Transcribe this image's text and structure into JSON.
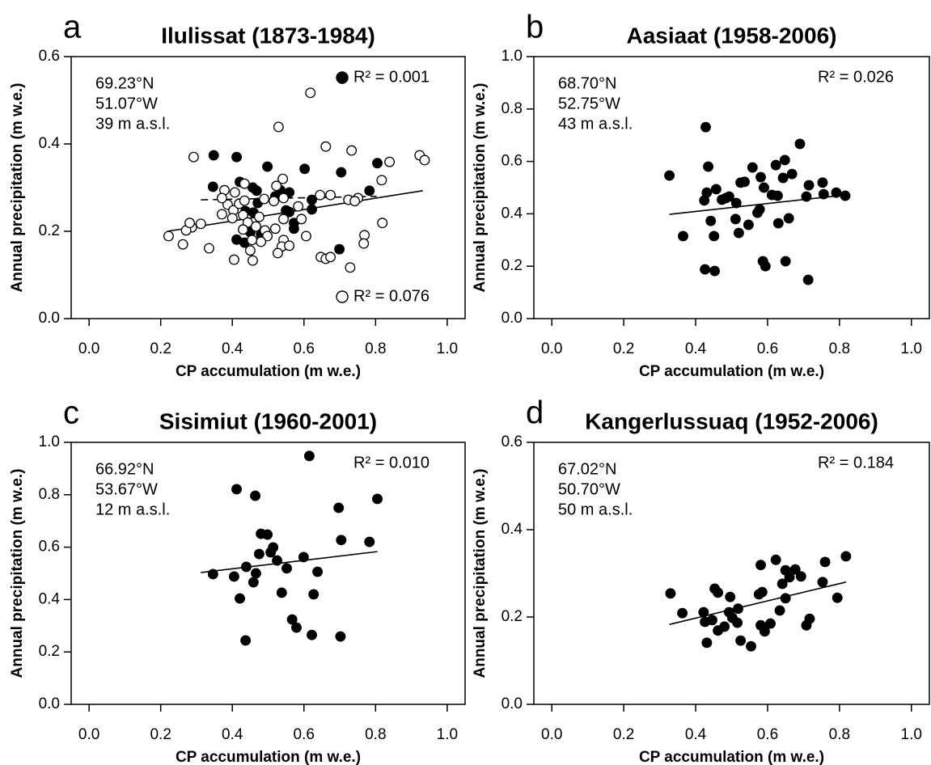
{
  "chart_data": [
    {
      "type": "scatter",
      "label": "a",
      "title": "Ilulissat (1873-1984)",
      "xlabel": "CP accumulation (m w.e.)",
      "ylabel": "Annual precipitation (m w.e.)",
      "xlim": [
        -0.05,
        1.05
      ],
      "ylim": [
        0,
        0.6
      ],
      "xticks": [
        {
          "value": 0,
          "label": "0.0"
        },
        0.2,
        0.4,
        0.6,
        0.8,
        {
          "value": 1,
          "label": "1.0"
        }
      ],
      "yticks": [
        {
          "value": 0,
          "label": "0.0"
        },
        0.2,
        0.4,
        0.6
      ],
      "annotations": [
        "69.23°N",
        "51.07°W",
        "39 m a.s.l."
      ],
      "legend_marker": true,
      "series": [
        {
          "name": "R² = 0.001",
          "color": "#000000",
          "filled": true,
          "x": [
            0.348,
            0.412,
            0.498,
            0.602,
            0.704,
            0.805,
            0.346,
            0.421,
            0.457,
            0.468,
            0.52,
            0.534,
            0.559,
            0.622,
            0.783,
            0.471,
            0.55,
            0.559,
            0.622,
            0.572,
            0.572,
            0.412,
            0.434,
            0.699,
            0.45,
            0.48,
            0.437,
            0.459
          ],
          "y": [
            0.374,
            0.37,
            0.348,
            0.343,
            0.335,
            0.356,
            0.302,
            0.313,
            0.3,
            0.293,
            0.28,
            0.294,
            0.289,
            0.272,
            0.293,
            0.265,
            0.248,
            0.244,
            0.25,
            0.219,
            0.206,
            0.181,
            0.174,
            0.159,
            0.198,
            0.193,
            0.246,
            0.243
          ],
          "fit": {
            "x": [
              0.312,
              0.803
            ],
            "y": [
              0.272,
              0.28
            ],
            "dash": true
          }
        },
        {
          "name": "R² = 0.076",
          "color": "#000000",
          "filled": false,
          "x": [
            0.292,
            0.618,
            0.529,
            0.661,
            0.733,
            0.923,
            0.937,
            0.839,
            0.817,
            0.724,
            0.751,
            0.742,
            0.645,
            0.674,
            0.541,
            0.523,
            0.434,
            0.407,
            0.378,
            0.387,
            0.371,
            0.403,
            0.419,
            0.43,
            0.443,
            0.475,
            0.489,
            0.516,
            0.543,
            0.584,
            0.593,
            0.543,
            0.52,
            0.491,
            0.498,
            0.48,
            0.455,
            0.543,
            0.606,
            0.538,
            0.559,
            0.527,
            0.45,
            0.457,
            0.405,
            0.335,
            0.262,
            0.222,
            0.287,
            0.271,
            0.312,
            0.281,
            0.819,
            0.769,
            0.767,
            0.647,
            0.661,
            0.674,
            0.729,
            0.4,
            0.466,
            0.371,
            0.434,
            0.43
          ],
          "y": [
            0.37,
            0.517,
            0.439,
            0.394,
            0.385,
            0.374,
            0.363,
            0.359,
            0.317,
            0.272,
            0.276,
            0.269,
            0.283,
            0.283,
            0.32,
            0.304,
            0.309,
            0.289,
            0.294,
            0.261,
            0.276,
            0.248,
            0.263,
            0.237,
            0.22,
            0.233,
            0.274,
            0.269,
            0.276,
            0.257,
            0.228,
            0.228,
            0.206,
            0.202,
            0.189,
            0.176,
            0.18,
            0.18,
            0.189,
            0.165,
            0.167,
            0.15,
            0.156,
            0.133,
            0.135,
            0.161,
            0.17,
            0.189,
            0.209,
            0.202,
            0.217,
            0.219,
            0.219,
            0.191,
            0.172,
            0.141,
            0.137,
            0.141,
            0.117,
            0.23,
            0.211,
            0.239,
            0.27,
            0.204
          ],
          "fit": {
            "x": [
              0.219,
              0.932
            ],
            "y": [
              0.2,
              0.293
            ],
            "dash": false
          }
        }
      ]
    },
    {
      "type": "scatter",
      "label": "b",
      "title": "Aasiaat (1958-2006)",
      "xlabel": "CP accumulation (m w.e.)",
      "ylabel": "Annual precipitation (m w.e.)",
      "xlim": [
        -0.05,
        1.05
      ],
      "ylim": [
        0,
        1
      ],
      "xticks": [
        {
          "value": 0,
          "label": "0.0"
        },
        0.2,
        0.4,
        0.6,
        0.8,
        {
          "value": 1,
          "label": "1.0"
        }
      ],
      "yticks": [
        {
          "value": 0,
          "label": "0.0"
        },
        0.2,
        0.4,
        0.6,
        0.8,
        {
          "value": 1,
          "label": "1.0"
        }
      ],
      "annotations": [
        "68.70°N",
        "52.75°W",
        "43 m a.s.l."
      ],
      "legend_marker": false,
      "series": [
        {
          "name": "R² = 0.026",
          "color": "#000000",
          "filled": true,
          "x": [
            0.327,
            0.428,
            0.435,
            0.365,
            0.424,
            0.431,
            0.457,
            0.442,
            0.451,
            0.426,
            0.453,
            0.473,
            0.484,
            0.493,
            0.511,
            0.513,
            0.52,
            0.525,
            0.536,
            0.547,
            0.558,
            0.572,
            0.578,
            0.581,
            0.587,
            0.59,
            0.594,
            0.612,
            0.623,
            0.63,
            0.628,
            0.643,
            0.648,
            0.65,
            0.659,
            0.668,
            0.69,
            0.708,
            0.715,
            0.713,
            0.753,
            0.756,
            0.791,
            0.816
          ],
          "y": [
            0.546,
            0.731,
            0.58,
            0.315,
            0.451,
            0.481,
            0.494,
            0.373,
            0.315,
            0.188,
            0.182,
            0.454,
            0.46,
            0.466,
            0.38,
            0.441,
            0.327,
            0.519,
            0.522,
            0.358,
            0.577,
            0.404,
            0.417,
            0.54,
            0.219,
            0.5,
            0.2,
            0.472,
            0.586,
            0.364,
            0.469,
            0.537,
            0.605,
            0.219,
            0.383,
            0.552,
            0.667,
            0.466,
            0.509,
            0.148,
            0.519,
            0.475,
            0.481,
            0.469
          ],
          "fit": {
            "x": [
              0.327,
              0.816
            ],
            "y": [
              0.398,
              0.472
            ],
            "dash": false
          }
        }
      ]
    },
    {
      "type": "scatter",
      "label": "c",
      "title": "Sisimiut (1960-2001)",
      "xlabel": "CP accumulation (m w.e.)",
      "ylabel": "Annual precipitation (m w.e.)",
      "xlim": [
        -0.05,
        1.05
      ],
      "ylim": [
        0,
        1
      ],
      "xticks": [
        {
          "value": 0,
          "label": "0.0"
        },
        0.2,
        0.4,
        0.6,
        0.8,
        {
          "value": 1,
          "label": "1.0"
        }
      ],
      "yticks": [
        {
          "value": 0,
          "label": "0.0"
        },
        0.2,
        0.4,
        0.6,
        0.8,
        {
          "value": 1,
          "label": "1.0"
        }
      ],
      "annotations": [
        "66.92°N",
        "53.67°W",
        "12 m a.s.l."
      ],
      "legend_marker": false,
      "series": [
        {
          "name": "R² = 0.010",
          "color": "#000000",
          "filled": true,
          "x": [
            0.346,
            0.412,
            0.405,
            0.421,
            0.439,
            0.437,
            0.464,
            0.459,
            0.466,
            0.475,
            0.48,
            0.498,
            0.507,
            0.514,
            0.525,
            0.538,
            0.552,
            0.567,
            0.579,
            0.599,
            0.615,
            0.622,
            0.627,
            0.638,
            0.697,
            0.704,
            0.702,
            0.783,
            0.805
          ],
          "y": [
            0.497,
            0.821,
            0.488,
            0.404,
            0.525,
            0.244,
            0.796,
            0.466,
            0.5,
            0.574,
            0.651,
            0.648,
            0.58,
            0.599,
            0.549,
            0.426,
            0.519,
            0.324,
            0.293,
            0.562,
            0.948,
            0.265,
            0.42,
            0.506,
            0.75,
            0.627,
            0.259,
            0.62,
            0.784
          ],
          "fit": {
            "x": [
              0.312,
              0.805
            ],
            "y": [
              0.503,
              0.583
            ],
            "dash": false
          }
        }
      ]
    },
    {
      "type": "scatter",
      "label": "d",
      "title": "Kangerlussuaq (1952-2006)",
      "xlabel": "CP accumulation (m w.e.)",
      "ylabel": "Annual precipitation (m w.e.)",
      "xlim": [
        -0.05,
        1.05
      ],
      "ylim": [
        0,
        0.6
      ],
      "xticks": [
        {
          "value": 0,
          "label": "0.0"
        },
        0.2,
        0.4,
        0.6,
        0.8,
        {
          "value": 1,
          "label": "1.0"
        }
      ],
      "yticks": [
        {
          "value": 0,
          "label": "0.0"
        },
        0.2,
        0.4,
        0.6
      ],
      "annotations": [
        "67.02°N",
        "50.70°W",
        "50 m a.s.l."
      ],
      "legend_marker": false,
      "series": [
        {
          "name": "R² = 0.184",
          "color": "#000000",
          "filled": true,
          "x": [
            0.33,
            0.363,
            0.422,
            0.426,
            0.431,
            0.446,
            0.453,
            0.462,
            0.462,
            0.48,
            0.496,
            0.493,
            0.502,
            0.518,
            0.516,
            0.525,
            0.554,
            0.576,
            0.585,
            0.581,
            0.581,
            0.592,
            0.608,
            0.623,
            0.634,
            0.641,
            0.65,
            0.65,
            0.661,
            0.677,
            0.693,
            0.708,
            0.717,
            0.753,
            0.76,
            0.794,
            0.818
          ],
          "y": [
            0.254,
            0.209,
            0.211,
            0.189,
            0.141,
            0.193,
            0.265,
            0.256,
            0.169,
            0.178,
            0.246,
            0.211,
            0.198,
            0.219,
            0.187,
            0.146,
            0.133,
            0.252,
            0.257,
            0.319,
            0.181,
            0.167,
            0.185,
            0.331,
            0.215,
            0.276,
            0.307,
            0.243,
            0.291,
            0.309,
            0.293,
            0.181,
            0.196,
            0.28,
            0.326,
            0.244,
            0.339
          ],
          "fit": {
            "x": [
              0.327,
              0.818
            ],
            "y": [
              0.183,
              0.28
            ],
            "dash": false
          }
        }
      ]
    }
  ]
}
